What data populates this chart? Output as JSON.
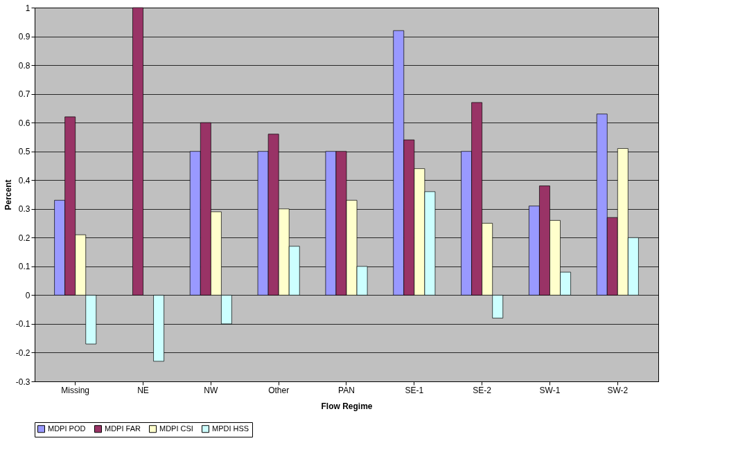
{
  "chart_data": {
    "type": "bar",
    "xlabel": "Flow Regime",
    "ylabel": "Percent",
    "categories": [
      "Missing",
      "NE",
      "NW",
      "Other",
      "PAN",
      "SE-1",
      "SE-2",
      "SW-1",
      "SW-2"
    ],
    "series": [
      {
        "name": "MDPI POD",
        "color": "#9999ff",
        "values": [
          0.33,
          null,
          0.5,
          0.5,
          0.5,
          0.92,
          0.5,
          0.31,
          0.63
        ]
      },
      {
        "name": "MDPI FAR",
        "color": "#993366",
        "values": [
          0.62,
          1.0,
          0.6,
          0.56,
          0.5,
          0.54,
          0.67,
          0.38,
          0.27
        ]
      },
      {
        "name": "MDPI CSI",
        "color": "#ffffcc",
        "values": [
          0.21,
          null,
          0.29,
          0.3,
          0.33,
          0.44,
          0.25,
          0.26,
          0.51
        ]
      },
      {
        "name": "MPDI HSS",
        "color": "#ccffff",
        "values": [
          -0.17,
          -0.23,
          -0.1,
          0.17,
          0.1,
          0.36,
          -0.08,
          0.08,
          0.2
        ]
      }
    ],
    "ylim": [
      -0.3,
      1
    ],
    "yticks": [
      -0.3,
      -0.2,
      -0.1,
      0,
      0.1,
      0.2,
      0.3,
      0.4,
      0.5,
      0.6,
      0.7,
      0.8,
      0.9,
      1
    ],
    "grid": "y",
    "legend": "bottom"
  }
}
